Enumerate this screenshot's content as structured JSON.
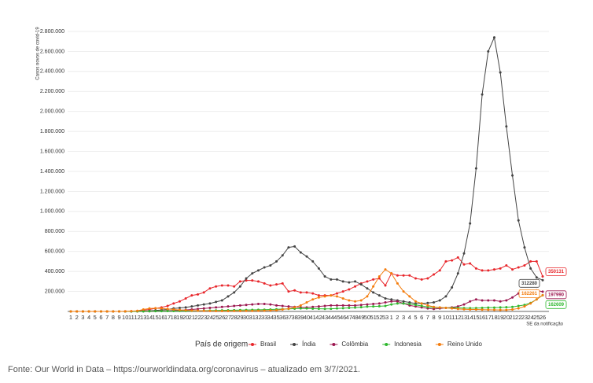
{
  "chart_data": {
    "type": "line",
    "y_label": "Casos novos de covid-19",
    "x_label": "SE da notificação",
    "legend_title": "País de origem",
    "categories": [
      "1",
      "2",
      "3",
      "4",
      "5",
      "6",
      "7",
      "8",
      "9",
      "10",
      "11",
      "12",
      "13",
      "14",
      "15",
      "16",
      "17",
      "18",
      "19",
      "20",
      "21",
      "22",
      "23",
      "24",
      "25",
      "26",
      "27",
      "28",
      "29",
      "30",
      "31",
      "32",
      "33",
      "34",
      "35",
      "36",
      "37",
      "38",
      "39",
      "40",
      "41",
      "42",
      "43",
      "44",
      "45",
      "46",
      "47",
      "48",
      "49",
      "50",
      "51",
      "52",
      "53",
      "1",
      "2",
      "3",
      "4",
      "5",
      "6",
      "7",
      "8",
      "9",
      "10",
      "11",
      "12",
      "13",
      "14",
      "15",
      "16",
      "17",
      "18",
      "19",
      "20",
      "21",
      "22",
      "23",
      "24",
      "25",
      "26"
    ],
    "ylim": [
      0,
      2800000
    ],
    "yticks": [
      {
        "value": 200000,
        "label": "200.000"
      },
      {
        "value": 400000,
        "label": "400.000"
      },
      {
        "value": 600000,
        "label": "600.000"
      },
      {
        "value": 800000,
        "label": "800.000"
      },
      {
        "value": 1000000,
        "label": "1.000.000"
      },
      {
        "value": 1200000,
        "label": "1.200.000"
      },
      {
        "value": 1400000,
        "label": "1.400.000"
      },
      {
        "value": 1600000,
        "label": "1.600.000"
      },
      {
        "value": 1800000,
        "label": "1.800.000"
      },
      {
        "value": 2000000,
        "label": "2.000.000"
      },
      {
        "value": 2200000,
        "label": "2.200.000"
      },
      {
        "value": 2400000,
        "label": "2.400.000"
      },
      {
        "value": 2600000,
        "label": "2.600.000"
      },
      {
        "value": 2800000,
        "label": "2.800.000"
      }
    ],
    "grid": true,
    "series": [
      {
        "name": "Brasil",
        "color": "#e8262b",
        "values": [
          0,
          0,
          0,
          0,
          0,
          0,
          0,
          0,
          0,
          500,
          2000,
          5000,
          12000,
          20000,
          30000,
          40000,
          55000,
          80000,
          100000,
          130000,
          160000,
          170000,
          190000,
          230000,
          250000,
          260000,
          260000,
          250000,
          300000,
          310000,
          310000,
          300000,
          280000,
          260000,
          270000,
          280000,
          200000,
          210000,
          190000,
          190000,
          180000,
          160000,
          160000,
          160000,
          180000,
          200000,
          220000,
          250000,
          280000,
          300000,
          320000,
          330000,
          260000,
          380000,
          360000,
          360000,
          360000,
          330000,
          320000,
          330000,
          370000,
          410000,
          500000,
          510000,
          540000,
          470000,
          480000,
          430000,
          410000,
          410000,
          420000,
          430000,
          460000,
          420000,
          440000,
          460000,
          500000,
          500000,
          350131
        ]
      },
      {
        "name": "Índia",
        "color": "#444444",
        "values": [
          0,
          0,
          0,
          0,
          0,
          0,
          0,
          0,
          0,
          50,
          300,
          1000,
          3000,
          6000,
          10000,
          15000,
          20000,
          30000,
          35000,
          40000,
          50000,
          60000,
          70000,
          80000,
          95000,
          110000,
          150000,
          190000,
          250000,
          330000,
          380000,
          410000,
          440000,
          460000,
          500000,
          560000,
          640000,
          650000,
          590000,
          550000,
          500000,
          430000,
          350000,
          320000,
          320000,
          300000,
          290000,
          300000,
          270000,
          230000,
          190000,
          160000,
          130000,
          120000,
          110000,
          100000,
          90000,
          80000,
          80000,
          85000,
          90000,
          110000,
          150000,
          240000,
          380000,
          580000,
          880000,
          1430000,
          2170000,
          2600000,
          2740000,
          2390000,
          1850000,
          1360000,
          910000,
          640000,
          430000,
          340000,
          312280
        ]
      },
      {
        "name": "Colômbia",
        "color": "#9c1750",
        "values": [
          0,
          0,
          0,
          0,
          0,
          0,
          0,
          0,
          0,
          0,
          100,
          500,
          1000,
          2000,
          3000,
          5000,
          7000,
          10000,
          12000,
          15000,
          20000,
          25000,
          30000,
          35000,
          40000,
          45000,
          50000,
          55000,
          60000,
          65000,
          70000,
          75000,
          75000,
          70000,
          60000,
          55000,
          50000,
          45000,
          40000,
          40000,
          45000,
          50000,
          55000,
          60000,
          60000,
          60000,
          60000,
          60000,
          65000,
          70000,
          75000,
          80000,
          90000,
          100000,
          100000,
          80000,
          60000,
          50000,
          40000,
          30000,
          25000,
          30000,
          35000,
          40000,
          50000,
          70000,
          100000,
          120000,
          110000,
          110000,
          110000,
          100000,
          110000,
          140000,
          180000,
          190000,
          200000,
          210000,
          197990
        ]
      },
      {
        "name": "Indonesia",
        "color": "#2eb82e",
        "values": [
          0,
          0,
          0,
          0,
          0,
          0,
          0,
          0,
          0,
          0,
          100,
          500,
          1000,
          2000,
          2500,
          3000,
          3500,
          4000,
          4500,
          5000,
          6000,
          7000,
          8000,
          9000,
          10000,
          11000,
          12000,
          13000,
          14000,
          15000,
          16000,
          17000,
          18000,
          20000,
          22000,
          24000,
          26000,
          28000,
          30000,
          30000,
          28000,
          27000,
          26000,
          27000,
          30000,
          32000,
          35000,
          38000,
          42000,
          48000,
          50000,
          52000,
          55000,
          70000,
          80000,
          80000,
          75000,
          65000,
          55000,
          45000,
          40000,
          38000,
          35000,
          35000,
          35000,
          33000,
          32000,
          33000,
          35000,
          38000,
          38000,
          40000,
          42000,
          45000,
          55000,
          65000,
          85000,
          120000,
          162609
        ]
      },
      {
        "name": "Reino Unido",
        "color": "#f47c0c",
        "values": [
          0,
          0,
          0,
          0,
          0,
          0,
          0,
          0,
          0,
          1000,
          3000,
          6000,
          20000,
          30000,
          32000,
          30000,
          25000,
          20000,
          15000,
          12000,
          9000,
          8000,
          6000,
          5000,
          4000,
          4000,
          4000,
          4500,
          5000,
          5500,
          6000,
          7000,
          8000,
          10000,
          12000,
          20000,
          28000,
          40000,
          60000,
          90000,
          120000,
          140000,
          150000,
          160000,
          150000,
          130000,
          110000,
          100000,
          110000,
          150000,
          250000,
          350000,
          420000,
          380000,
          280000,
          200000,
          150000,
          100000,
          80000,
          60000,
          45000,
          40000,
          35000,
          30000,
          25000,
          22000,
          20000,
          20000,
          18000,
          17000,
          16000,
          15000,
          15000,
          20000,
          30000,
          50000,
          80000,
          120000,
          162261
        ]
      }
    ]
  },
  "source": "Fonte: Our World in Data – https://ourworldindata.org/coronavirus – atualizado em 3/7/2021."
}
